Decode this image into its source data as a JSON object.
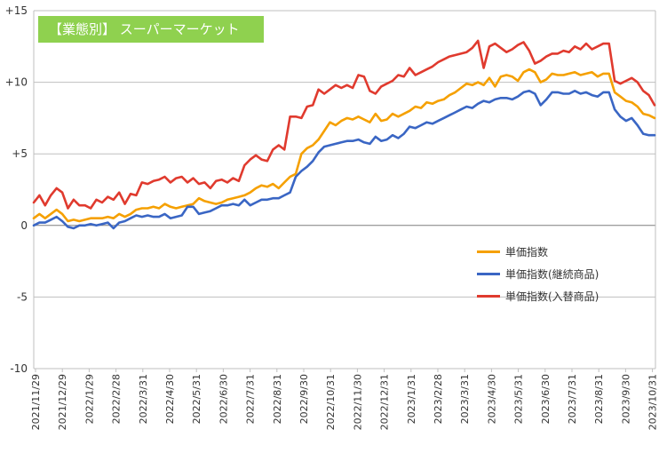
{
  "chart_data": {
    "type": "line",
    "title": "【業態別】 スーパーマーケット",
    "ylim": [
      -10,
      15
    ],
    "y_ticks": [
      "+15",
      "+10",
      "+5",
      "0",
      "-5",
      "-10"
    ],
    "y_tick_values": [
      15,
      10,
      5,
      0,
      -5,
      -10
    ],
    "x_tick_labels": [
      "2021/11/29",
      "2021/12/29",
      "2022/1/29",
      "2022/2/28",
      "2022/3/31",
      "2022/4/30",
      "2022/5/31",
      "2022/6/30",
      "2022/7/31",
      "2022/8/31",
      "2022/9/30",
      "2022/10/31",
      "2022/11/30",
      "2022/12/31",
      "2023/1/31",
      "2023/2/28",
      "2023/3/31",
      "2023/4/30",
      "2023/5/31",
      "2023/6/30",
      "2023/7/31",
      "2023/8/31",
      "2023/9/30",
      "2023/10/31"
    ],
    "grid": "horizontal",
    "legend_position": "right",
    "series": [
      {
        "name": "単価指数",
        "color": "#f5a000",
        "values": [
          0.5,
          0.8,
          0.5,
          0.8,
          1.1,
          0.8,
          0.3,
          0.4,
          0.3,
          0.4,
          0.5,
          0.5,
          0.5,
          0.6,
          0.5,
          0.8,
          0.6,
          0.8,
          1.1,
          1.2,
          1.2,
          1.3,
          1.2,
          1.5,
          1.3,
          1.2,
          1.3,
          1.4,
          1.5,
          1.9,
          1.7,
          1.6,
          1.5,
          1.6,
          1.8,
          1.9,
          2.0,
          2.1,
          2.3,
          2.6,
          2.8,
          2.7,
          2.9,
          2.6,
          3.0,
          3.4,
          3.6,
          5.0,
          5.4,
          5.6,
          6.0,
          6.6,
          7.2,
          7.0,
          7.3,
          7.5,
          7.4,
          7.6,
          7.4,
          7.2,
          7.8,
          7.3,
          7.4,
          7.8,
          7.6,
          7.8,
          8.0,
          8.3,
          8.2,
          8.6,
          8.5,
          8.7,
          8.8,
          9.1,
          9.3,
          9.6,
          9.9,
          9.8,
          10.0,
          9.8,
          10.3,
          9.7,
          10.4,
          10.5,
          10.4,
          10.1,
          10.7,
          10.9,
          10.7,
          10.0,
          10.2,
          10.6,
          10.5,
          10.5,
          10.6,
          10.7,
          10.5,
          10.6,
          10.7,
          10.4,
          10.6,
          10.6,
          9.3,
          9.0,
          8.7,
          8.6,
          8.3,
          7.8,
          7.7,
          7.5
        ]
      },
      {
        "name": "単価指数(継続商品)",
        "color": "#3a66c4",
        "values": [
          0.0,
          0.2,
          0.2,
          0.4,
          0.6,
          0.3,
          -0.1,
          -0.2,
          0.0,
          0.0,
          0.1,
          0.0,
          0.1,
          0.2,
          -0.2,
          0.2,
          0.3,
          0.5,
          0.7,
          0.6,
          0.7,
          0.6,
          0.6,
          0.8,
          0.5,
          0.6,
          0.7,
          1.3,
          1.3,
          0.8,
          0.9,
          1.0,
          1.2,
          1.4,
          1.4,
          1.5,
          1.4,
          1.8,
          1.4,
          1.6,
          1.8,
          1.8,
          1.9,
          1.9,
          2.1,
          2.3,
          3.4,
          3.8,
          4.1,
          4.5,
          5.1,
          5.5,
          5.6,
          5.7,
          5.8,
          5.9,
          5.9,
          6.0,
          5.8,
          5.7,
          6.2,
          5.9,
          6.0,
          6.3,
          6.1,
          6.4,
          6.9,
          6.8,
          7.0,
          7.2,
          7.1,
          7.3,
          7.5,
          7.7,
          7.9,
          8.1,
          8.3,
          8.2,
          8.5,
          8.7,
          8.6,
          8.8,
          8.9,
          8.9,
          8.8,
          9.0,
          9.3,
          9.4,
          9.2,
          8.4,
          8.8,
          9.3,
          9.3,
          9.2,
          9.2,
          9.4,
          9.2,
          9.3,
          9.1,
          9.0,
          9.3,
          9.3,
          8.1,
          7.6,
          7.3,
          7.5,
          7.0,
          6.4,
          6.3,
          6.3
        ]
      },
      {
        "name": "単価指数(入替商品)",
        "color": "#e03a2e",
        "values": [
          1.6,
          2.1,
          1.4,
          2.1,
          2.6,
          2.3,
          1.2,
          1.8,
          1.4,
          1.4,
          1.2,
          1.8,
          1.6,
          2.0,
          1.8,
          2.3,
          1.5,
          2.2,
          2.1,
          3.0,
          2.9,
          3.1,
          3.2,
          3.4,
          3.0,
          3.3,
          3.4,
          3.0,
          3.3,
          2.9,
          3.0,
          2.6,
          3.1,
          3.2,
          3.0,
          3.3,
          3.1,
          4.2,
          4.6,
          4.9,
          4.6,
          4.5,
          5.3,
          5.6,
          5.3,
          7.6,
          7.6,
          7.5,
          8.3,
          8.4,
          9.5,
          9.2,
          9.5,
          9.8,
          9.6,
          9.8,
          9.6,
          10.5,
          10.4,
          9.4,
          9.2,
          9.7,
          9.9,
          10.1,
          10.5,
          10.4,
          11.0,
          10.5,
          10.7,
          10.9,
          11.1,
          11.4,
          11.6,
          11.8,
          11.9,
          12.0,
          12.1,
          12.4,
          12.9,
          11.0,
          12.5,
          12.7,
          12.4,
          12.1,
          12.3,
          12.6,
          12.8,
          12.2,
          11.3,
          11.5,
          11.8,
          12.0,
          12.0,
          12.2,
          12.1,
          12.5,
          12.3,
          12.7,
          12.3,
          12.5,
          12.7,
          12.7,
          10.1,
          9.9,
          10.1,
          10.3,
          10.0,
          9.4,
          9.1,
          8.4
        ]
      }
    ]
  }
}
